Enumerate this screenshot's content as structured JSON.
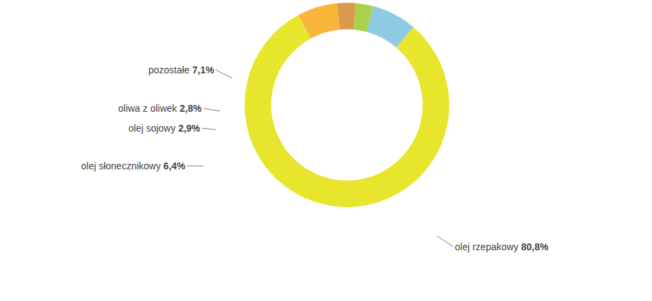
{
  "chart_data": {
    "type": "pie",
    "categories": [
      "pozostałe",
      "oliwa z oliwek",
      "olej sojowy",
      "olej słonecznikowy",
      "olej rzepakowy"
    ],
    "values": [
      7.1,
      2.8,
      2.9,
      6.4,
      80.8
    ],
    "value_labels": [
      "7,1%",
      "2,8%",
      "2,9%",
      "6,4%",
      "80,8%"
    ],
    "colors": [
      "#8ecbe2",
      "#a9d24c",
      "#d99a4c",
      "#f8b63a",
      "#e7e52c"
    ],
    "data_labels": true
  }
}
